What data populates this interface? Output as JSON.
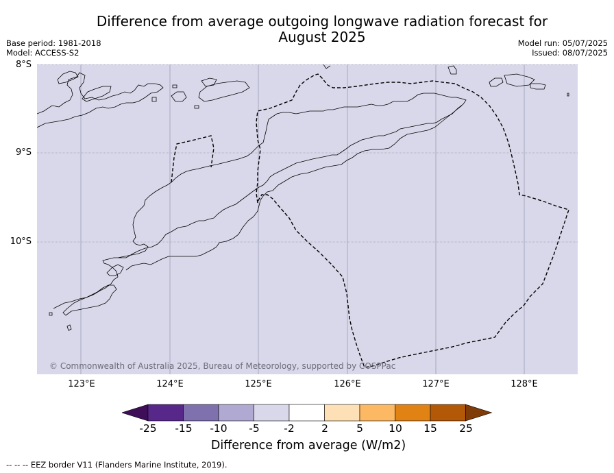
{
  "title": "Difference from average outgoing longwave radiation forecast for August 2025",
  "title_line1": "Difference from average outgoing longwave radiation forecast for",
  "title_line2": "August 2025",
  "meta_left": {
    "base_period": "Base period: 1981-2018",
    "model": "Model: ACCESS-S2"
  },
  "meta_right": {
    "model_run": "Model run: 05/07/2025",
    "issued": "Issued: 08/07/2025"
  },
  "map": {
    "lat_labels": [
      "8°S",
      "9°S",
      "10°S"
    ],
    "lon_labels": [
      "123°E",
      "124°E",
      "125°E",
      "126°E",
      "127°E",
      "128°E"
    ],
    "background_color": "#d8d8ea",
    "grid": true,
    "copyright": "© Commonwealth of Australia 2025, Bureau of Meteorology, supported by COSPPac"
  },
  "colorbar": {
    "ticks": [
      "-25",
      "-15",
      "-10",
      "-5",
      "-2",
      "2",
      "5",
      "10",
      "15",
      "25"
    ],
    "colors": [
      "#3f0e58",
      "#57288a",
      "#7f70ae",
      "#b0aad3",
      "#d8d8ea",
      "#ffffff",
      "#fee0b6",
      "#fdb863",
      "#e08214",
      "#b35806",
      "#7f3b08"
    ],
    "title": "Difference from average (W/m2)"
  },
  "footnote": "--  --  -- EEZ border V11 (Flanders Marine Institute, 2019)."
}
